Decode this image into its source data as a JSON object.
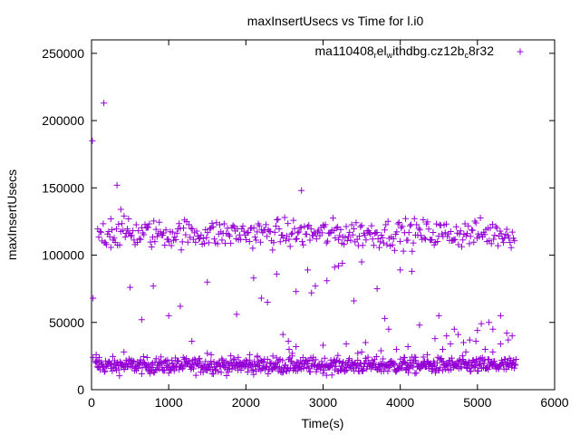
{
  "chart_data": {
    "type": "scatter",
    "title": "maxInsertUsecs vs Time for l.i0",
    "xlabel": "Time(s)",
    "ylabel": "maxInsertUsecs",
    "xlim": [
      0,
      6000
    ],
    "ylim": [
      0,
      260000
    ],
    "x_ticks": [
      0,
      1000,
      2000,
      3000,
      4000,
      5000,
      6000
    ],
    "x_tick_labels": [
      "0",
      "1000",
      "2000",
      "3000",
      "4000",
      "5000",
      "6000"
    ],
    "y_ticks": [
      0,
      50000,
      100000,
      150000,
      200000,
      250000
    ],
    "y_tick_labels": [
      "0",
      "50000",
      "100000",
      "150000",
      "200000",
      "250000"
    ],
    "marker_color": "#9400d3",
    "legend_placement": "top-right",
    "legend": {
      "base": "ma110408",
      "s1": "r",
      "t1": "el",
      "s2": "w",
      "t2": "ithdbg.cz12b",
      "s3": "c",
      "t3": "8r32"
    },
    "series": [
      {
        "name": "ma110408_rel_withdbg.cz12b_c8r32",
        "outliers": {
          "x": [
            10,
            20,
            160,
            250,
            330,
            380,
            420,
            480,
            500,
            650,
            800,
            1000,
            1150,
            1300,
            1500,
            1880,
            2100,
            2200,
            2280,
            2400,
            2480,
            2550,
            2650,
            2720,
            2800,
            2850,
            2900,
            3050,
            3150,
            3200,
            3250,
            3400,
            3500,
            3700,
            3800,
            4000,
            4150,
            4250,
            4500,
            4600,
            4700,
            4820,
            4980,
            5050,
            5150,
            5200,
            5300,
            5400,
            5450,
            20,
            60,
            100,
            1400,
            1500,
            1550,
            1700,
            1900,
            2000,
            2050,
            2150,
            2350,
            2560,
            2600,
            2650,
            3000,
            3100,
            3150,
            3300,
            3450,
            3500,
            3550,
            3750,
            3850,
            3950,
            4050,
            4100,
            4200,
            4300,
            4350,
            4450,
            4550,
            4650,
            4750,
            4850,
            4900,
            5000,
            5100,
            5200,
            5300,
            5380
          ],
          "y": [
            185000,
            68000,
            213000,
            127000,
            152000,
            134000,
            28000,
            127000,
            76000,
            52000,
            77000,
            55000,
            62000,
            36000,
            80000,
            56000,
            83000,
            68000,
            65000,
            86000,
            41000,
            36000,
            73000,
            148000,
            89000,
            72000,
            77000,
            81000,
            91000,
            92000,
            94000,
            66000,
            95000,
            75000,
            53000,
            89000,
            88000,
            48000,
            55000,
            40000,
            45000,
            35000,
            36000,
            49000,
            50000,
            45000,
            55000,
            37000,
            40000,
            24000,
            26000,
            24000,
            21000,
            27000,
            26000,
            22000,
            24000,
            22000,
            26000,
            25000,
            25000,
            30000,
            27000,
            32000,
            33000,
            22000,
            21000,
            34000,
            27000,
            28000,
            35000,
            29000,
            45000,
            30000,
            24000,
            32000,
            24000,
            20000,
            26000,
            38000,
            30000,
            34000,
            41000,
            28000,
            37000,
            44000,
            30000,
            28000,
            34000,
            42000
          ]
        },
        "bands": [
          {
            "x_range": [
              50,
              5500
            ],
            "y_center": 18000,
            "y_spread": 5000,
            "count": 700
          },
          {
            "x_range": [
              80,
              5480
            ],
            "y_center": 116000,
            "y_spread": 9000,
            "count": 380
          }
        ]
      }
    ]
  }
}
